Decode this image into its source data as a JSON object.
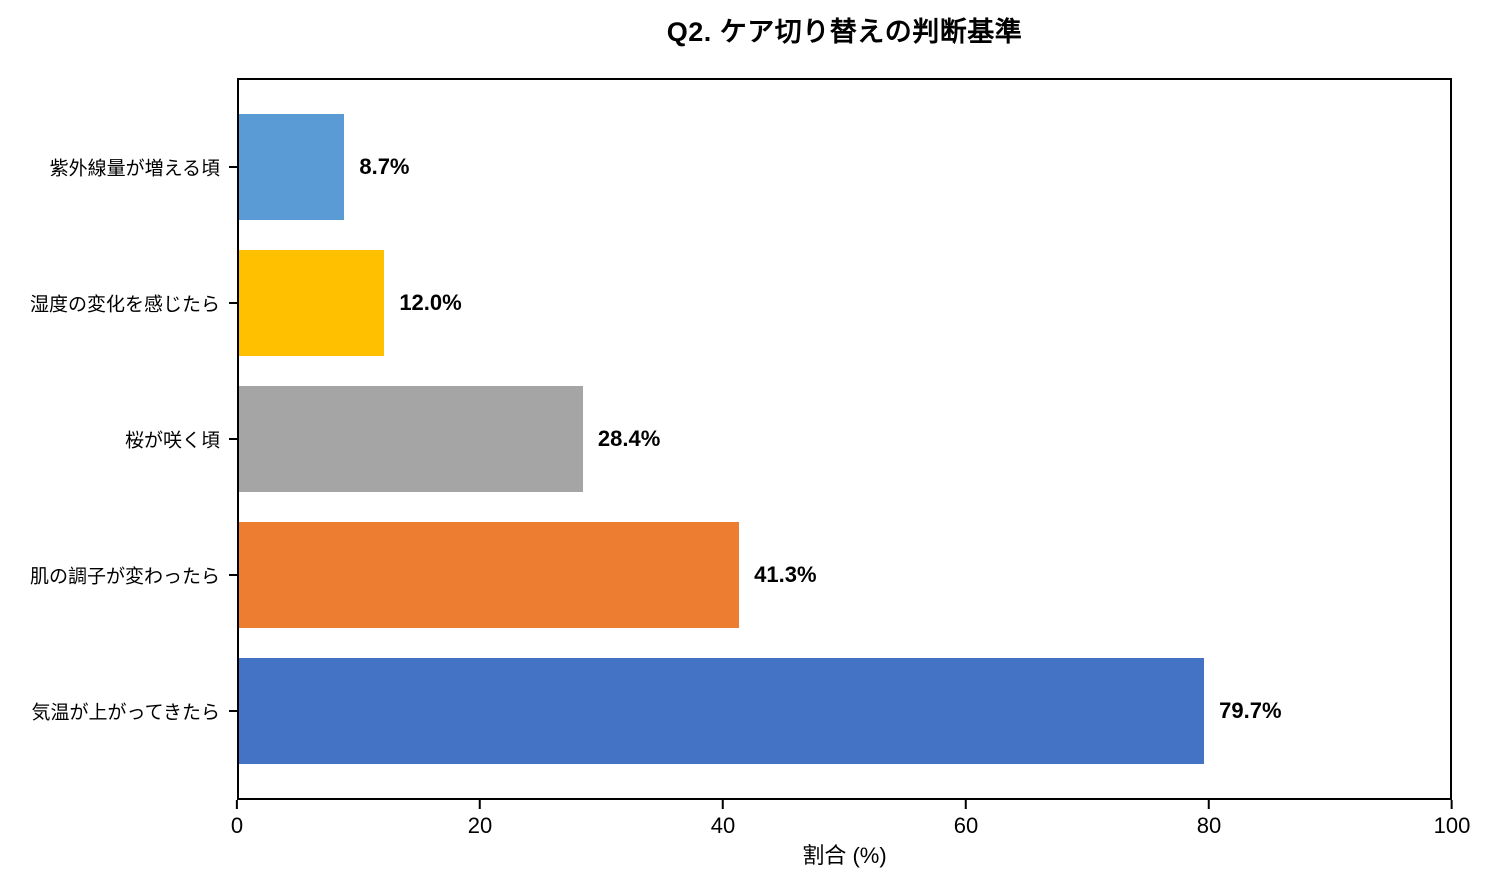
{
  "chart_data": {
    "type": "bar",
    "orientation": "horizontal",
    "title": "Q2. ケア切り替えの判断基準",
    "categories": [
      "紫外線量が増える頃",
      "湿度の変化を感じたら",
      "桜が咲く頃",
      "肌の調子が変わったら",
      "気温が上がってきたら"
    ],
    "values": [
      8.7,
      12.0,
      28.4,
      41.3,
      79.7
    ],
    "value_labels": [
      "8.7%",
      "12.0%",
      "28.4%",
      "41.3%",
      "79.7%"
    ],
    "colors": [
      "#5B9BD5",
      "#FFC000",
      "#A5A5A5",
      "#ED7D31",
      "#4472C4"
    ],
    "xlabel": "割合 (%)",
    "xlim": [
      0,
      100
    ],
    "xticks": [
      0,
      20,
      40,
      60,
      80,
      100
    ],
    "grid": false,
    "legend": "none",
    "frame_color": "#000000",
    "background": "#FFFFFF",
    "value_label_color": "#000000"
  }
}
